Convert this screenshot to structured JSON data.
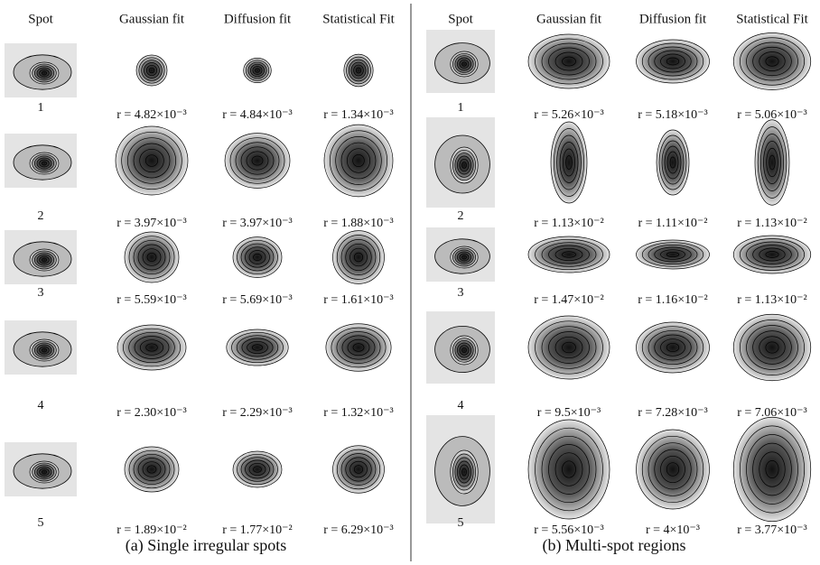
{
  "panels": [
    {
      "caption": "(a) Single irregular spots",
      "headers": [
        "Spot",
        "Gaussian fit",
        "Diffusion fit",
        "Statistical Fit"
      ],
      "rows": [
        {
          "spot": "1",
          "fits": [
            "r = 4.82×10⁻³",
            "r = 4.84×10⁻³",
            "r = 1.34×10⁻³"
          ]
        },
        {
          "spot": "2",
          "fits": [
            "r = 3.97×10⁻³",
            "r = 3.97×10⁻³",
            "r = 1.88×10⁻³"
          ]
        },
        {
          "spot": "3",
          "fits": [
            "r = 5.59×10⁻³",
            "r = 5.69×10⁻³",
            "r = 1.61×10⁻³"
          ]
        },
        {
          "spot": "4",
          "fits": [
            "r = 2.30×10⁻³",
            "r = 2.29×10⁻³",
            "r = 1.32×10⁻³"
          ]
        },
        {
          "spot": "5",
          "fits": [
            "r = 1.89×10⁻²",
            "r = 1.77×10⁻²",
            "r = 6.29×10⁻³"
          ]
        }
      ]
    },
    {
      "caption": "(b) Multi-spot regions",
      "headers": [
        "Spot",
        "Gaussian fit",
        "Diffusion fit",
        "Statistical Fit"
      ],
      "rows": [
        {
          "spot": "1",
          "fits": [
            "r = 5.26×10⁻³",
            "r = 5.18×10⁻³",
            "r = 5.06×10⁻³"
          ]
        },
        {
          "spot": "2",
          "fits": [
            "r = 1.13×10⁻²",
            "r = 1.11×10⁻²",
            "r = 1.13×10⁻²"
          ]
        },
        {
          "spot": "3",
          "fits": [
            "r = 1.47×10⁻²",
            "r = 1.16×10⁻²",
            "r = 1.13×10⁻²"
          ]
        },
        {
          "spot": "4",
          "fits": [
            "r = 9.5×10⁻³",
            "r = 7.28×10⁻³",
            "r = 7.06×10⁻³"
          ]
        },
        {
          "spot": "5",
          "fits": [
            "r = 5.56×10⁻³",
            "r = 4×10⁻³",
            "r = 3.77×10⁻³"
          ]
        }
      ]
    }
  ]
}
